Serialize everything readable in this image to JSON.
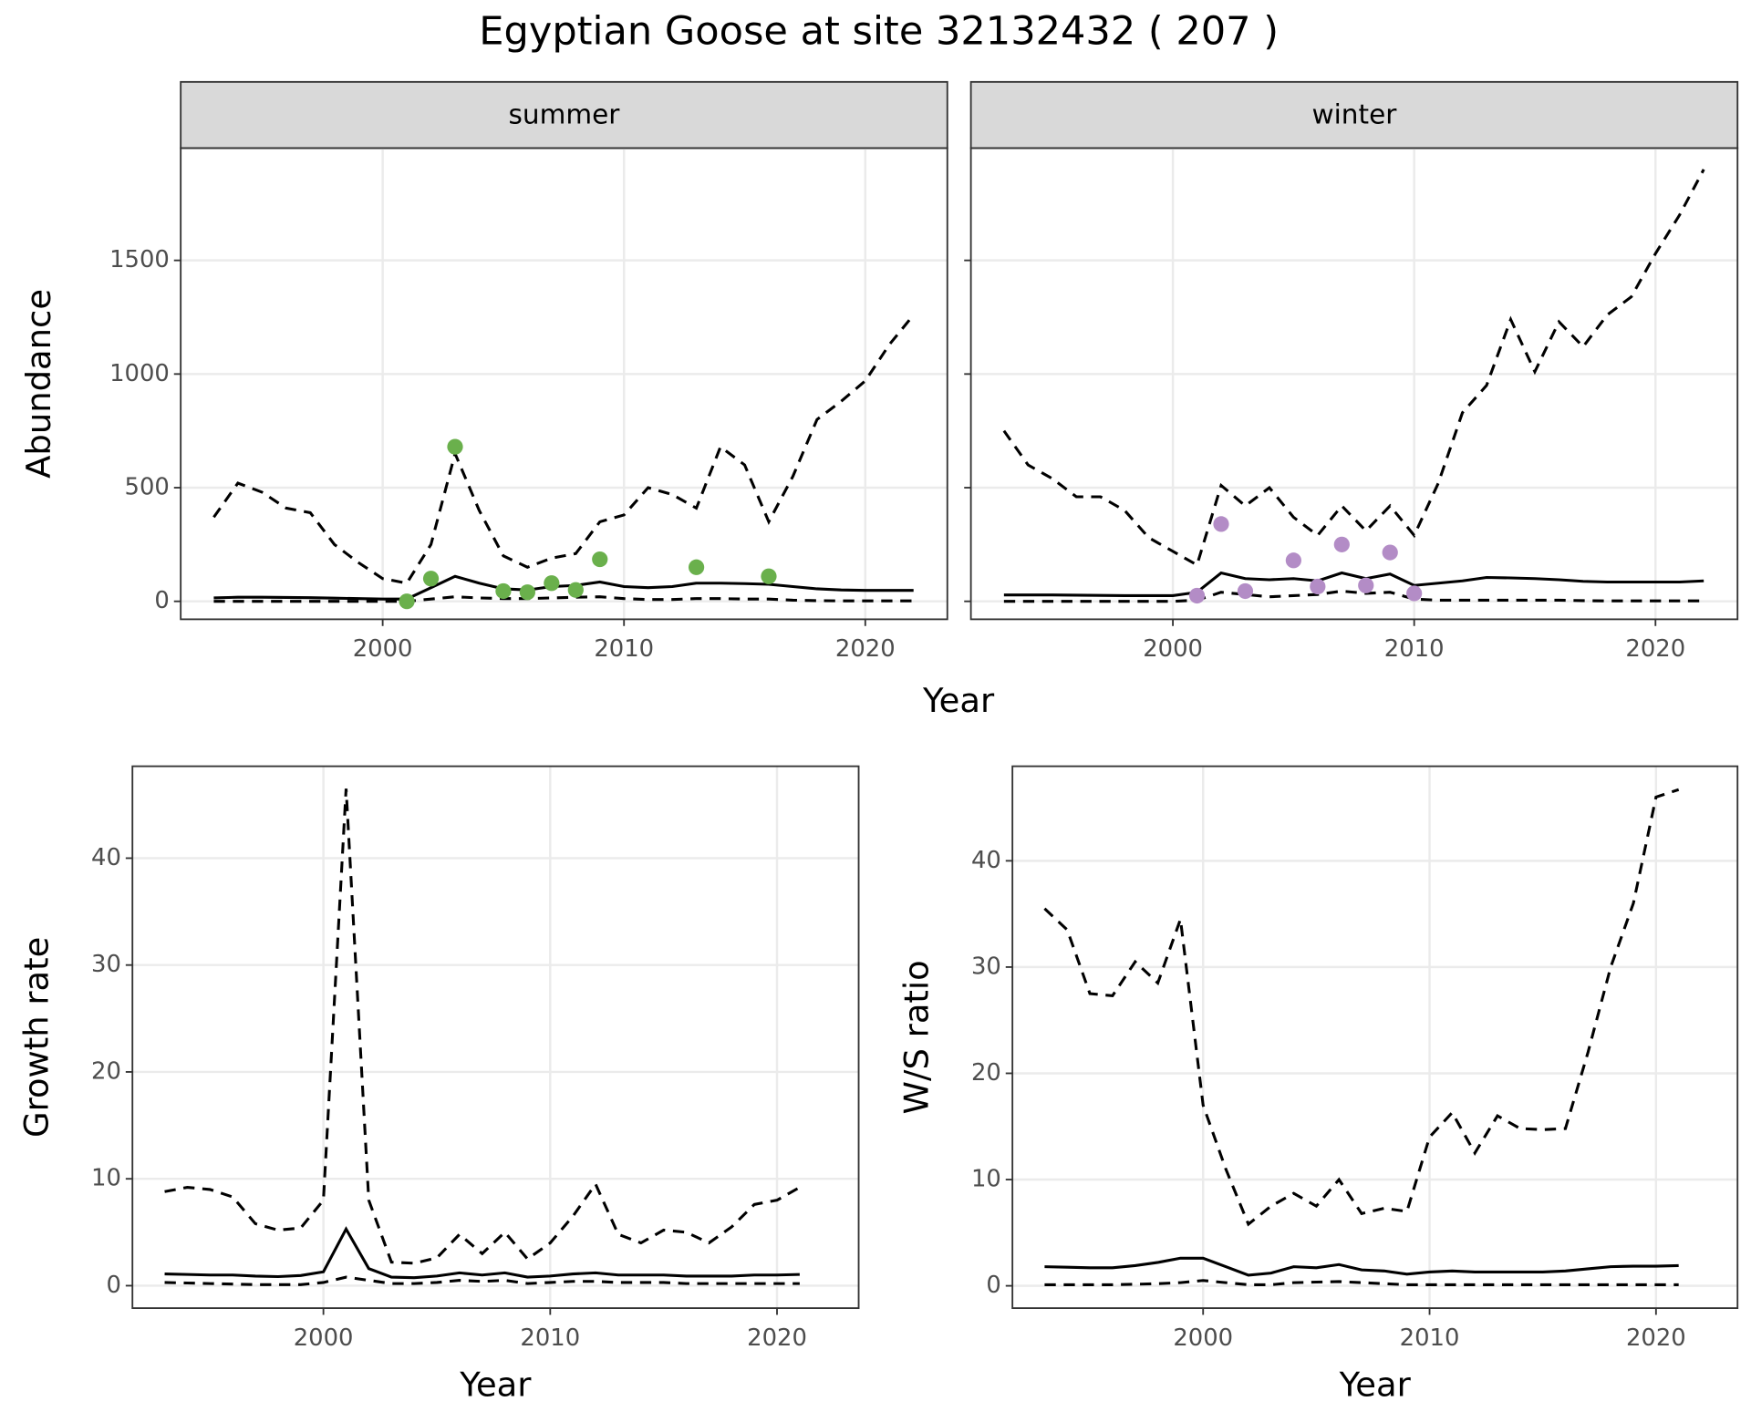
{
  "title": "Egyptian Goose at site 32132432 ( 207 )",
  "facet_xlabel": "Year",
  "facet_ylabel": "Abundance",
  "chart_data": [
    {
      "type": "line",
      "panel": "summer",
      "x": [
        1993,
        1994,
        1995,
        1996,
        1997,
        1998,
        1999,
        2000,
        2001,
        2002,
        2003,
        2004,
        2005,
        2006,
        2007,
        2008,
        2009,
        2010,
        2011,
        2012,
        2013,
        2014,
        2015,
        2016,
        2017,
        2018,
        2019,
        2020,
        2021,
        2022
      ],
      "series": [
        {
          "color": "#000000",
          "linestyle": "dashed",
          "values": [
            370,
            520,
            480,
            410,
            390,
            250,
            170,
            100,
            80,
            250,
            650,
            400,
            200,
            150,
            190,
            210,
            350,
            380,
            500,
            470,
            410,
            680,
            600,
            350,
            550,
            800,
            880,
            970,
            1130,
            1260
          ]
        },
        {
          "color": "#000000",
          "linestyle": "solid",
          "values": [
            15,
            18,
            18,
            17,
            16,
            14,
            12,
            10,
            10,
            60,
            110,
            80,
            55,
            50,
            65,
            70,
            85,
            65,
            60,
            65,
            80,
            80,
            78,
            75,
            65,
            55,
            50,
            48,
            48,
            48
          ]
        },
        {
          "color": "#000000",
          "linestyle": "dashed",
          "values": [
            0,
            0,
            0,
            0,
            0,
            0,
            0,
            0,
            0,
            10,
            20,
            15,
            12,
            12,
            15,
            18,
            20,
            12,
            8,
            8,
            12,
            12,
            10,
            10,
            5,
            3,
            2,
            2,
            2,
            2
          ]
        }
      ],
      "points": {
        "color": "#6ab04c",
        "x": [
          2001,
          2002,
          2003,
          2005,
          2006,
          2007,
          2008,
          2009,
          2013,
          2016
        ],
        "values": [
          0,
          100,
          680,
          45,
          40,
          80,
          50,
          185,
          150,
          110
        ]
      },
      "xlim": [
        1991.63,
        2023.4
      ],
      "ylim": [
        -79,
        1994
      ],
      "xticks": [
        2000,
        2010,
        2020
      ],
      "yticks": [
        0,
        500,
        1000,
        1500
      ],
      "ytick_labels": true,
      "grid": true
    },
    {
      "type": "line",
      "panel": "winter",
      "x": [
        1993,
        1994,
        1995,
        1996,
        1997,
        1998,
        1999,
        2000,
        2001,
        2002,
        2003,
        2004,
        2005,
        2006,
        2007,
        2008,
        2009,
        2010,
        2011,
        2012,
        2013,
        2014,
        2015,
        2016,
        2017,
        2018,
        2019,
        2020,
        2021,
        2022
      ],
      "series": [
        {
          "color": "#000000",
          "linestyle": "dashed",
          "values": [
            750,
            600,
            540,
            460,
            460,
            400,
            280,
            220,
            160,
            510,
            420,
            500,
            370,
            290,
            420,
            310,
            420,
            290,
            520,
            830,
            950,
            1240,
            1010,
            1230,
            1120,
            1260,
            1340,
            1530,
            1700,
            1900
          ]
        },
        {
          "color": "#000000",
          "linestyle": "solid",
          "values": [
            28,
            28,
            28,
            27,
            26,
            25,
            25,
            25,
            40,
            125,
            100,
            95,
            100,
            90,
            125,
            100,
            120,
            70,
            80,
            90,
            105,
            103,
            100,
            95,
            88,
            85,
            85,
            85,
            85,
            90
          ]
        },
        {
          "color": "#000000",
          "linestyle": "dashed",
          "values": [
            0,
            0,
            0,
            0,
            0,
            0,
            0,
            0,
            5,
            40,
            30,
            20,
            25,
            30,
            45,
            35,
            40,
            10,
            5,
            5,
            5,
            5,
            5,
            5,
            3,
            2,
            2,
            2,
            2,
            2
          ]
        }
      ],
      "points": {
        "color": "#b38cc6",
        "x": [
          2001,
          2002,
          2003,
          2005,
          2006,
          2007,
          2008,
          2009,
          2010
        ],
        "values": [
          25,
          340,
          45,
          180,
          65,
          250,
          70,
          215,
          35
        ]
      },
      "xlim": [
        1991.63,
        2023.4
      ],
      "ylim": [
        -79,
        1994
      ],
      "xticks": [
        2000,
        2010,
        2020
      ],
      "yticks": [
        0,
        500,
        1000,
        1500
      ],
      "ytick_labels": false,
      "grid": true
    },
    {
      "type": "line",
      "xlabel": "Year",
      "ylabel": "Growth rate",
      "x": [
        1993,
        1994,
        1995,
        1996,
        1997,
        1998,
        1999,
        2000,
        2001,
        2002,
        2003,
        2004,
        2005,
        2006,
        2007,
        2008,
        2009,
        2010,
        2011,
        2012,
        2013,
        2014,
        2015,
        2016,
        2017,
        2018,
        2019,
        2020,
        2021
      ],
      "series": [
        {
          "color": "#000000",
          "linestyle": "dashed",
          "values": [
            8.8,
            9.2,
            9,
            8.3,
            5.8,
            5.2,
            5.4,
            8,
            46.5,
            8,
            2.2,
            2.1,
            2.6,
            4.8,
            3,
            5,
            2.5,
            4,
            6.5,
            9.5,
            4.8,
            4,
            5.2,
            5,
            4,
            5.5,
            7.6,
            8,
            9.2
          ]
        },
        {
          "color": "#000000",
          "linestyle": "solid",
          "values": [
            1.1,
            1.05,
            1,
            1,
            0.9,
            0.85,
            0.95,
            1.3,
            5.3,
            1.6,
            0.8,
            0.75,
            0.9,
            1.2,
            1,
            1.2,
            0.8,
            0.9,
            1.1,
            1.2,
            1,
            1,
            1,
            0.9,
            0.9,
            0.9,
            1,
            1,
            1.05
          ]
        },
        {
          "color": "#000000",
          "linestyle": "dashed",
          "values": [
            0.3,
            0.25,
            0.2,
            0.15,
            0.1,
            0.1,
            0.1,
            0.3,
            0.8,
            0.5,
            0.2,
            0.2,
            0.3,
            0.5,
            0.4,
            0.5,
            0.2,
            0.3,
            0.4,
            0.4,
            0.3,
            0.3,
            0.3,
            0.2,
            0.2,
            0.2,
            0.2,
            0.2,
            0.2
          ]
        }
      ],
      "xlim": [
        1991.58,
        2023.6
      ],
      "ylim": [
        -2.1,
        48.6
      ],
      "xticks": [
        2000,
        2010,
        2020
      ],
      "yticks": [
        0,
        10,
        20,
        30,
        40
      ],
      "ytick_labels": true,
      "grid": true
    },
    {
      "type": "line",
      "xlabel": "Year",
      "ylabel": "W/S ratio",
      "x": [
        1993,
        1994,
        1995,
        1996,
        1997,
        1998,
        1999,
        2000,
        2001,
        2002,
        2003,
        2004,
        2005,
        2006,
        2007,
        2008,
        2009,
        2010,
        2011,
        2012,
        2013,
        2014,
        2015,
        2016,
        2017,
        2018,
        2019,
        2020,
        2021
      ],
      "series": [
        {
          "color": "#000000",
          "linestyle": "dashed",
          "values": [
            35.5,
            33.5,
            27.5,
            27.3,
            30.5,
            28.5,
            34.5,
            17,
            11,
            5.8,
            7.5,
            8.7,
            7.5,
            10,
            6.8,
            7.3,
            7,
            14,
            16.3,
            12.5,
            16,
            14.8,
            14.7,
            14.8,
            22,
            30,
            36,
            46,
            46.7
          ]
        },
        {
          "color": "#000000",
          "linestyle": "solid",
          "values": [
            1.8,
            1.75,
            1.7,
            1.7,
            1.9,
            2.2,
            2.6,
            2.6,
            1.8,
            1,
            1.2,
            1.8,
            1.7,
            2,
            1.5,
            1.4,
            1.1,
            1.3,
            1.4,
            1.3,
            1.3,
            1.3,
            1.3,
            1.4,
            1.6,
            1.8,
            1.85,
            1.85,
            1.9
          ]
        },
        {
          "color": "#000000",
          "linestyle": "dashed",
          "values": [
            0.1,
            0.1,
            0.1,
            0.1,
            0.15,
            0.2,
            0.3,
            0.5,
            0.3,
            0.1,
            0.1,
            0.3,
            0.35,
            0.4,
            0.3,
            0.2,
            0.1,
            0.1,
            0.1,
            0.1,
            0.1,
            0.1,
            0.1,
            0.1,
            0.1,
            0.1,
            0.1,
            0.1,
            0.1
          ]
        }
      ],
      "xlim": [
        1991.58,
        2023.6
      ],
      "ylim": [
        -2.1,
        48.9
      ],
      "xticks": [
        2000,
        2010,
        2020
      ],
      "yticks": [
        0,
        10,
        20,
        30,
        40
      ],
      "ytick_labels": true,
      "grid": true
    }
  ]
}
